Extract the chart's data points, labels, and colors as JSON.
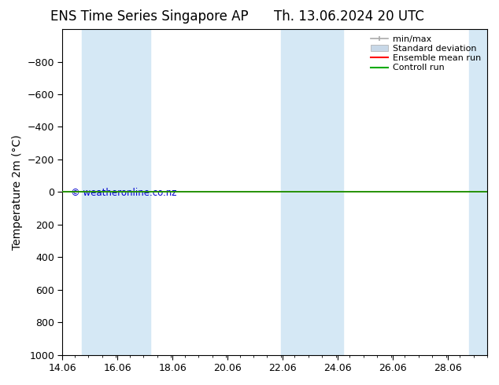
{
  "title_left": "ENS Time Series Singapore AP",
  "title_right": "Th. 13.06.2024 20 UTC",
  "ylabel": "Temperature 2m (°C)",
  "xlim": [
    14.06,
    29.5
  ],
  "ylim_bottom": 1000,
  "ylim_top": -1000,
  "yticks": [
    -800,
    -600,
    -400,
    -200,
    0,
    200,
    400,
    600,
    800,
    1000
  ],
  "xtick_labels": [
    "14.06",
    "16.06",
    "18.06",
    "20.06",
    "22.06",
    "24.06",
    "26.06",
    "28.06"
  ],
  "xtick_values": [
    14.06,
    16.06,
    18.06,
    20.06,
    22.06,
    24.06,
    26.06,
    28.06
  ],
  "shaded_bands": [
    [
      14.75,
      15.5
    ],
    [
      15.5,
      17.25
    ],
    [
      22.0,
      22.75
    ],
    [
      22.75,
      24.25
    ],
    [
      28.85,
      29.5
    ]
  ],
  "green_line_y": 0,
  "red_line_y": 0,
  "watermark": "© weatheronline.co.nz",
  "watermark_color": "#0000cc",
  "background_color": "#ffffff",
  "band_color": "#d5e8f5",
  "legend_minmax_color": "#aaaaaa",
  "legend_stddev_color": "#c8d8e8",
  "legend_ensemble_color": "#ff0000",
  "legend_control_color": "#00aa00",
  "title_fontsize": 12,
  "axis_label_fontsize": 10,
  "tick_fontsize": 9,
  "legend_fontsize": 8
}
